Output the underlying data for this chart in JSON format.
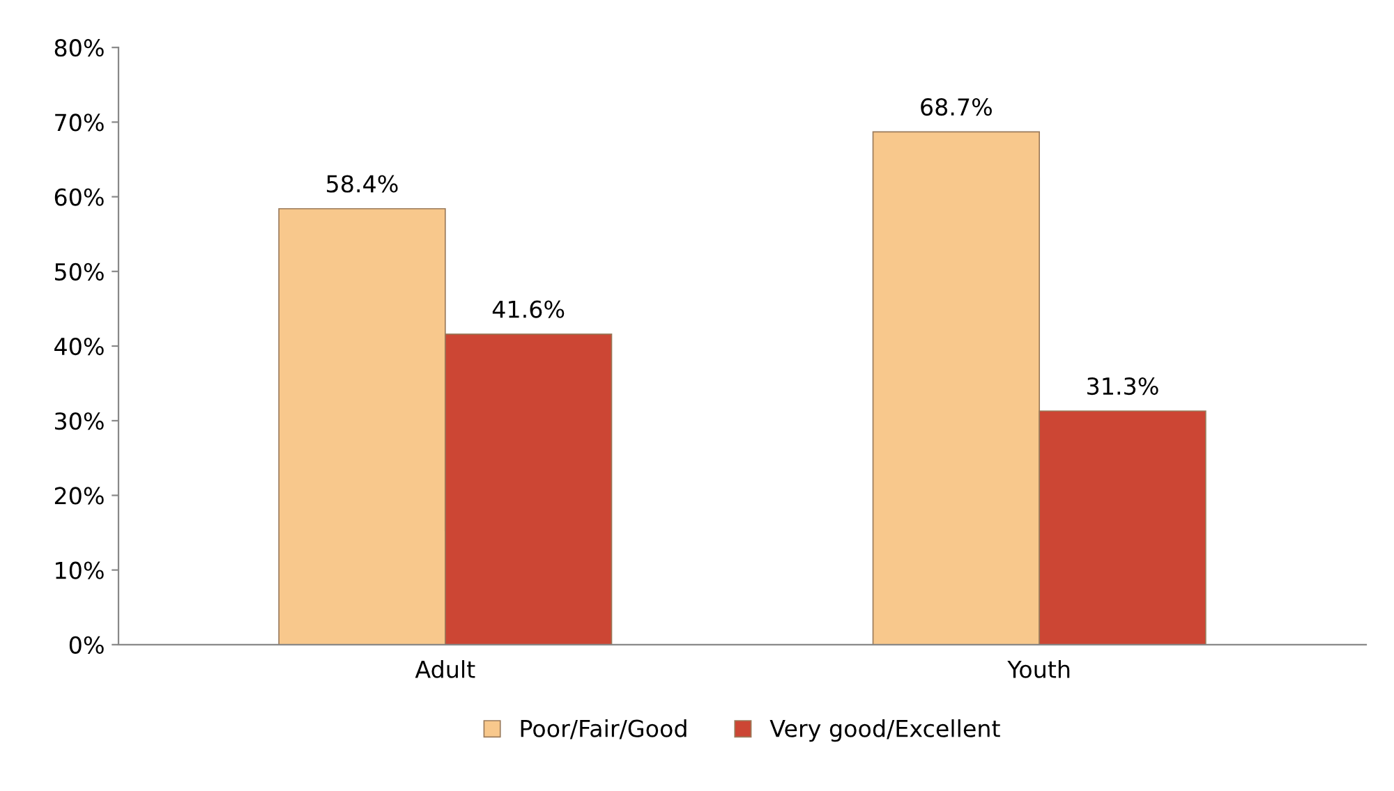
{
  "chart_data": {
    "type": "bar",
    "categories": [
      "Adult",
      "Youth"
    ],
    "series": [
      {
        "name": "Poor/Fair/Good",
        "color": "#f8c88c",
        "values": [
          58.4,
          68.7
        ],
        "value_labels": [
          "58.4%",
          "68.7%"
        ]
      },
      {
        "name": "Very good/Excellent",
        "color": "#cc4634",
        "values": [
          41.6,
          31.3
        ],
        "value_labels": [
          "41.6%",
          "31.3%"
        ]
      }
    ],
    "ylim": [
      0,
      80
    ],
    "yticks": [
      {
        "value": 0,
        "label": "0%"
      },
      {
        "value": 10,
        "label": "10%"
      },
      {
        "value": 20,
        "label": "20%"
      },
      {
        "value": 30,
        "label": "30%"
      },
      {
        "value": 40,
        "label": "40%"
      },
      {
        "value": 50,
        "label": "50%"
      },
      {
        "value": 60,
        "label": "60%"
      },
      {
        "value": 70,
        "label": "70%"
      },
      {
        "value": 80,
        "label": "80%"
      }
    ],
    "grid": false,
    "legend": "bottom"
  }
}
